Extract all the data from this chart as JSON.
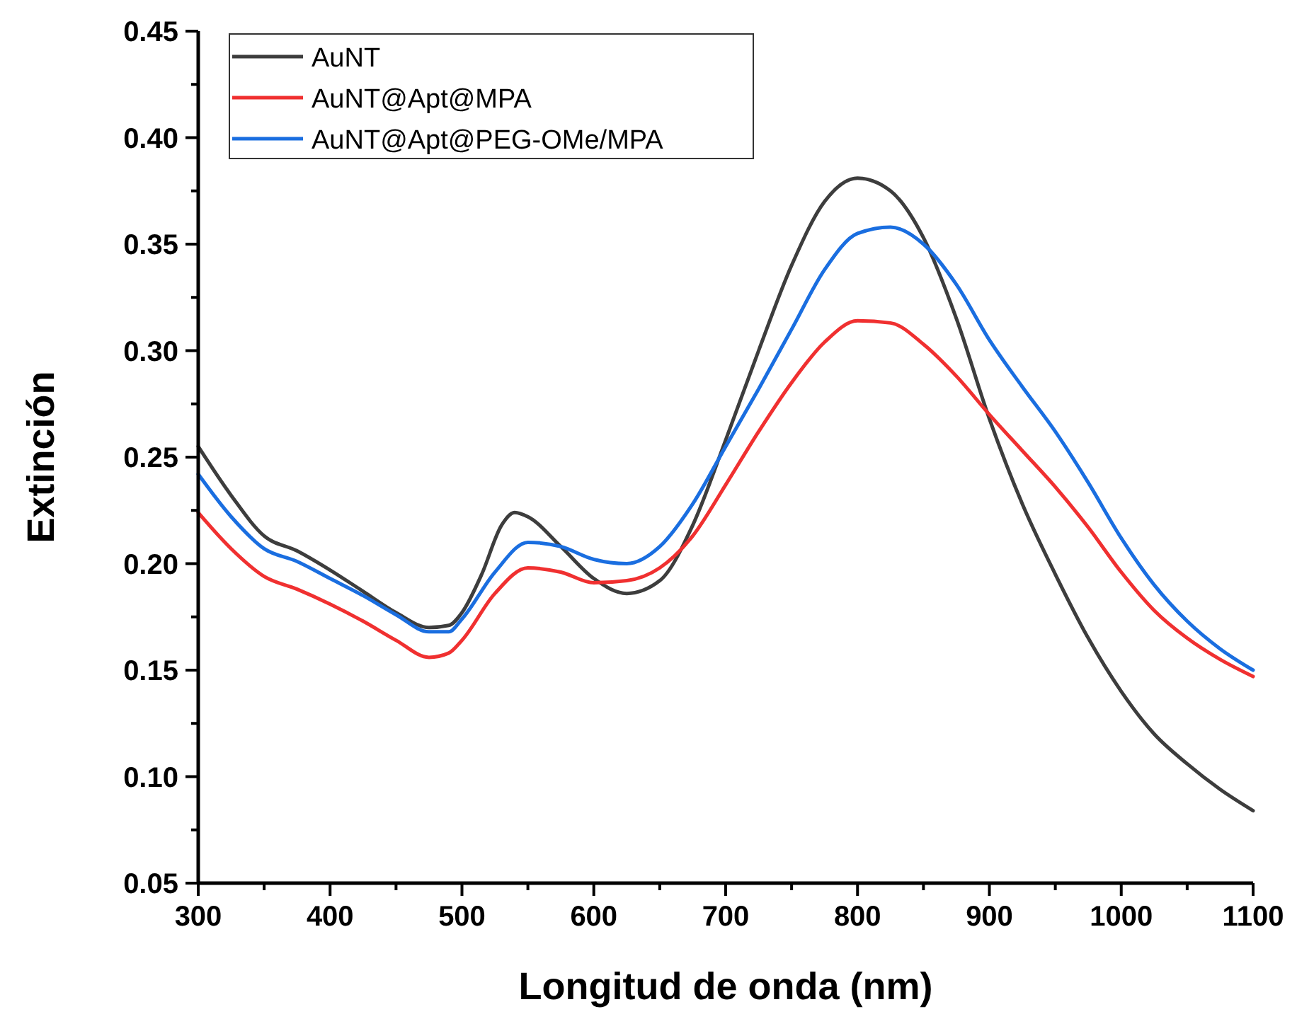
{
  "chart_data": {
    "type": "line",
    "xlabel": "Longitud de onda (nm)",
    "ylabel": "Extinción",
    "legend": "top left",
    "grid": false,
    "marker": "none",
    "line_style": "solid",
    "xlim": [
      300,
      1100
    ],
    "ylim": [
      0.05,
      0.45
    ],
    "xticks": [
      300,
      {
        "value": 350,
        "label": null
      },
      400,
      {
        "value": 450,
        "label": null
      },
      500,
      {
        "value": 550,
        "label": null
      },
      600,
      {
        "value": 650,
        "label": null
      },
      700,
      {
        "value": 750,
        "label": null
      },
      800,
      {
        "value": 850,
        "label": null
      },
      900,
      {
        "value": 950,
        "label": null
      },
      1000,
      {
        "value": 1050,
        "label": null
      },
      1100
    ],
    "yticks": [
      {
        "value": 0.05,
        "label": "0.05"
      },
      {
        "value": 0.075,
        "label": null
      },
      {
        "value": 0.1,
        "label": "0.10"
      },
      {
        "value": 0.125,
        "label": null
      },
      {
        "value": 0.15,
        "label": "0.15"
      },
      {
        "value": 0.175,
        "label": null
      },
      {
        "value": 0.2,
        "label": "0.20"
      },
      {
        "value": 0.225,
        "label": null
      },
      {
        "value": 0.25,
        "label": "0.25"
      },
      {
        "value": 0.275,
        "label": null
      },
      {
        "value": 0.3,
        "label": "0.30"
      },
      {
        "value": 0.325,
        "label": null
      },
      {
        "value": 0.35,
        "label": "0.35"
      },
      {
        "value": 0.375,
        "label": null
      },
      {
        "value": 0.4,
        "label": "0.40"
      },
      {
        "value": 0.425,
        "label": null
      },
      {
        "value": 0.45,
        "label": "0.45"
      }
    ],
    "series": [
      {
        "name": "AuNT",
        "color": "#3d3d3d",
        "x": [
          300,
          325,
          350,
          375,
          400,
          425,
          450,
          475,
          490,
          500,
          515,
          530,
          540,
          550,
          575,
          600,
          625,
          650,
          675,
          700,
          725,
          750,
          775,
          800,
          825,
          850,
          875,
          900,
          925,
          950,
          975,
          1000,
          1025,
          1050,
          1075,
          1100
        ],
        "values": [
          0.255,
          0.232,
          0.213,
          0.206,
          0.197,
          0.187,
          0.177,
          0.17,
          0.171,
          0.177,
          0.195,
          0.218,
          0.224,
          0.222,
          0.208,
          0.193,
          0.186,
          0.192,
          0.218,
          0.258,
          0.3,
          0.34,
          0.37,
          0.381,
          0.375,
          0.353,
          0.315,
          0.268,
          0.228,
          0.195,
          0.165,
          0.14,
          0.12,
          0.106,
          0.094,
          0.084
        ]
      },
      {
        "name": "AuNT@Apt@MPA",
        "color": "#f03030",
        "x": [
          300,
          325,
          350,
          375,
          400,
          425,
          450,
          475,
          490,
          500,
          525,
          550,
          575,
          600,
          625,
          650,
          675,
          700,
          725,
          750,
          775,
          800,
          825,
          850,
          875,
          900,
          925,
          950,
          975,
          1000,
          1025,
          1050,
          1075,
          1100
        ],
        "values": [
          0.224,
          0.207,
          0.194,
          0.188,
          0.181,
          0.173,
          0.164,
          0.156,
          0.158,
          0.164,
          0.186,
          0.198,
          0.196,
          0.191,
          0.192,
          0.198,
          0.213,
          0.237,
          0.262,
          0.285,
          0.304,
          0.314,
          0.313,
          0.303,
          0.288,
          0.27,
          0.253,
          0.236,
          0.217,
          0.196,
          0.178,
          0.165,
          0.155,
          0.147
        ]
      },
      {
        "name": "AuNT@Apt@PEG-OMe/MPA",
        "color": "#1a6ee0",
        "x": [
          300,
          325,
          350,
          375,
          400,
          425,
          450,
          475,
          490,
          500,
          525,
          550,
          575,
          600,
          625,
          650,
          675,
          700,
          725,
          750,
          775,
          800,
          825,
          850,
          875,
          900,
          925,
          950,
          975,
          1000,
          1025,
          1050,
          1075,
          1100
        ],
        "values": [
          0.242,
          0.222,
          0.207,
          0.201,
          0.193,
          0.185,
          0.176,
          0.168,
          0.168,
          0.174,
          0.196,
          0.21,
          0.208,
          0.202,
          0.2,
          0.208,
          0.228,
          0.255,
          0.282,
          0.31,
          0.338,
          0.355,
          0.358,
          0.35,
          0.331,
          0.305,
          0.283,
          0.262,
          0.238,
          0.212,
          0.19,
          0.173,
          0.16,
          0.15
        ]
      }
    ]
  }
}
